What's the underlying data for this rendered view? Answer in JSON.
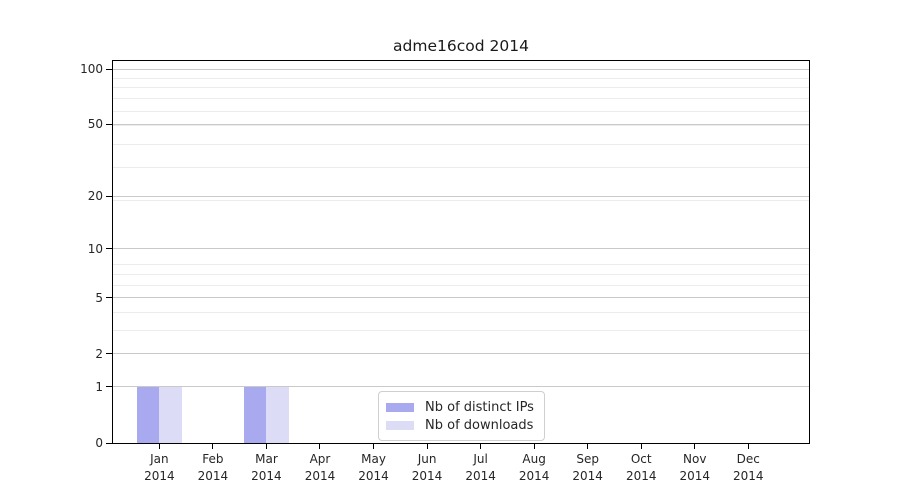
{
  "chart_data": {
    "type": "bar",
    "title": "adme16cod 2014",
    "categories": [
      "Jan",
      "Feb",
      "Mar",
      "Apr",
      "May",
      "Jun",
      "Jul",
      "Aug",
      "Sep",
      "Oct",
      "Nov",
      "Dec"
    ],
    "category_year": "2014",
    "series": [
      {
        "name": "Nb of distinct IPs",
        "color": "#a9a9f0",
        "values": [
          1,
          0,
          1,
          0,
          0,
          0,
          0,
          0,
          0,
          0,
          0,
          0
        ]
      },
      {
        "name": "Nb of downloads",
        "color": "#dcdcf7",
        "values": [
          1,
          0,
          1,
          0,
          0,
          0,
          0,
          0,
          0,
          0,
          0,
          0
        ]
      }
    ],
    "xlabel": "",
    "ylabel": "",
    "y_axis": {
      "scale": "log1p",
      "ticks": [
        0,
        1,
        2,
        5,
        10,
        20,
        50,
        100
      ],
      "minor_gridline_values": [
        1,
        2,
        3,
        4,
        5,
        6,
        7,
        8,
        19,
        29,
        39,
        49,
        59,
        69,
        79,
        89
      ],
      "ylim": [
        0,
        110
      ]
    },
    "grid": true,
    "legend": {
      "position": "bottom-center-left"
    },
    "colors": {
      "axis": "#000000",
      "major_grid": "#c9c9c9",
      "minor_grid": "#ececec",
      "text": "#262626",
      "background": "#ffffff"
    }
  }
}
